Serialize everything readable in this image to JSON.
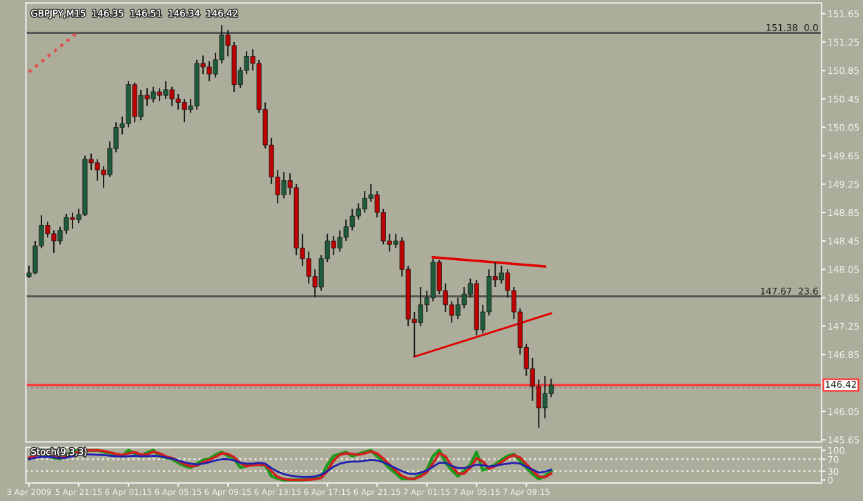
{
  "chart_data": [
    {
      "type": "candlestick",
      "tick_labels": "y",
      "grid": false,
      "annotations": [
        "GBPJPY,M15  146.35  146.51  146.34  146.42",
        {
          "text": "146.42",
          "y": 146.42
        }
      ],
      "categories": [
        null,
        null,
        null,
        null,
        null,
        null,
        null,
        null,
        null,
        null,
        null,
        null,
        null,
        null,
        null,
        null,
        null,
        null,
        null,
        null,
        null,
        null,
        null,
        null,
        null,
        null,
        null,
        null,
        null,
        null,
        null,
        null,
        null,
        null,
        null,
        null,
        null,
        null,
        null,
        null,
        null,
        null,
        null,
        null,
        null,
        null,
        null,
        null,
        null,
        null,
        null,
        null,
        null,
        null,
        null,
        null,
        null,
        null,
        null,
        null,
        null,
        null,
        null,
        null,
        null,
        null,
        null,
        null,
        null,
        null,
        null,
        null,
        null,
        null,
        null,
        null,
        null,
        null,
        null,
        null,
        null,
        null,
        null,
        null,
        null,
        null,
        null,
        null,
        null,
        null,
        null,
        null,
        null,
        null,
        null,
        null,
        null,
        null,
        null,
        null,
        null,
        null,
        null,
        null,
        null,
        null,
        null,
        null,
        null,
        null,
        null,
        null,
        null,
        null,
        null,
        null,
        null,
        null,
        null,
        null,
        null,
        null,
        null,
        null,
        null,
        null,
        null,
        null
      ],
      "ylim": [
        145.62,
        151.8
      ],
      "yticks": [
        151.65,
        151.25,
        150.85,
        150.45,
        150.05,
        149.65,
        149.25,
        148.85,
        148.45,
        148.05,
        147.65,
        147.25,
        146.85,
        {
          "value": 146.45,
          "label": null
        },
        146.05,
        145.65
      ],
      "ohlc": [
        [
          147.95,
          148.1,
          147.93,
          148.0
        ],
        [
          148.0,
          148.45,
          147.98,
          148.38
        ],
        [
          148.38,
          148.81,
          148.35,
          148.67
        ],
        [
          148.67,
          148.72,
          148.5,
          148.55
        ],
        [
          148.55,
          148.6,
          148.28,
          148.45
        ],
        [
          148.45,
          148.65,
          148.4,
          148.6
        ],
        [
          148.6,
          148.83,
          148.55,
          148.78
        ],
        [
          148.78,
          148.85,
          148.62,
          148.75
        ],
        [
          148.75,
          148.9,
          148.7,
          148.82
        ],
        [
          148.82,
          149.65,
          148.8,
          149.6
        ],
        [
          149.6,
          149.68,
          149.45,
          149.55
        ],
        [
          149.55,
          149.6,
          149.3,
          149.45
        ],
        [
          149.45,
          149.5,
          149.2,
          149.38
        ],
        [
          149.38,
          149.85,
          149.35,
          149.75
        ],
        [
          149.75,
          150.12,
          149.7,
          150.05
        ],
        [
          150.05,
          150.2,
          149.95,
          150.1
        ],
        [
          150.1,
          150.7,
          150.05,
          150.65
        ],
        [
          150.65,
          150.68,
          150.12,
          150.2
        ],
        [
          150.2,
          150.58,
          150.15,
          150.5
        ],
        [
          150.5,
          150.6,
          150.35,
          150.45
        ],
        [
          150.45,
          150.62,
          150.4,
          150.55
        ],
        [
          150.55,
          150.6,
          150.42,
          150.5
        ],
        [
          150.5,
          150.7,
          150.45,
          150.58
        ],
        [
          150.58,
          150.62,
          150.35,
          150.45
        ],
        [
          150.45,
          150.52,
          150.3,
          150.4
        ],
        [
          150.4,
          150.45,
          150.12,
          150.3
        ],
        [
          150.3,
          150.45,
          150.25,
          150.35
        ],
        [
          150.35,
          151.0,
          150.3,
          150.95
        ],
        [
          150.95,
          151.06,
          150.8,
          150.9
        ],
        [
          150.9,
          150.98,
          150.7,
          150.8
        ],
        [
          150.8,
          151.1,
          150.75,
          151.0
        ],
        [
          151.0,
          151.49,
          150.95,
          151.35
        ],
        [
          151.35,
          151.42,
          151.05,
          151.2
        ],
        [
          151.2,
          151.25,
          150.55,
          150.65
        ],
        [
          150.65,
          150.9,
          150.6,
          150.85
        ],
        [
          150.85,
          151.12,
          150.8,
          151.05
        ],
        [
          151.05,
          151.15,
          150.85,
          150.95
        ],
        [
          150.95,
          151.0,
          150.25,
          150.3
        ],
        [
          150.3,
          150.4,
          149.75,
          149.8
        ],
        [
          149.8,
          149.9,
          149.25,
          149.35
        ],
        [
          149.35,
          149.45,
          148.98,
          149.1
        ],
        [
          149.1,
          149.42,
          149.05,
          149.3
        ],
        [
          149.3,
          149.4,
          149.1,
          149.2
        ],
        [
          149.2,
          149.25,
          148.25,
          148.35
        ],
        [
          148.35,
          148.55,
          148.1,
          148.2
        ],
        [
          148.2,
          148.3,
          147.85,
          147.95
        ],
        [
          147.95,
          148.05,
          147.66,
          147.8
        ],
        [
          147.8,
          148.25,
          147.75,
          148.2
        ],
        [
          148.2,
          148.55,
          148.15,
          148.45
        ],
        [
          148.45,
          148.52,
          148.25,
          148.35
        ],
        [
          148.35,
          148.6,
          148.3,
          148.5
        ],
        [
          148.5,
          148.75,
          148.45,
          148.65
        ],
        [
          148.65,
          148.9,
          148.6,
          148.8
        ],
        [
          148.8,
          148.98,
          148.75,
          148.9
        ],
        [
          148.9,
          149.15,
          148.85,
          149.05
        ],
        [
          149.05,
          149.25,
          149.0,
          149.1
        ],
        [
          149.1,
          149.15,
          148.78,
          148.85
        ],
        [
          148.85,
          148.9,
          148.4,
          148.45
        ],
        [
          148.45,
          148.55,
          148.3,
          148.4
        ],
        [
          148.4,
          148.55,
          148.35,
          148.45
        ],
        [
          148.45,
          148.5,
          147.95,
          148.05
        ],
        [
          148.05,
          148.1,
          147.25,
          147.35
        ],
        [
          147.35,
          147.45,
          146.82,
          147.3
        ],
        [
          147.3,
          147.8,
          147.25,
          147.55
        ],
        [
          147.55,
          147.75,
          147.45,
          147.65
        ],
        [
          147.65,
          148.2,
          147.6,
          148.15
        ],
        [
          148.15,
          148.18,
          147.7,
          147.75
        ],
        [
          147.75,
          147.85,
          147.45,
          147.55
        ],
        [
          147.55,
          147.6,
          147.3,
          147.4
        ],
        [
          147.4,
          147.65,
          147.35,
          147.55
        ],
        [
          147.55,
          147.8,
          147.5,
          147.7
        ],
        [
          147.7,
          147.92,
          147.65,
          147.85
        ],
        [
          147.85,
          147.9,
          147.12,
          147.2
        ],
        [
          147.2,
          147.55,
          147.15,
          147.45
        ],
        [
          147.45,
          148.05,
          147.4,
          147.95
        ],
        [
          147.95,
          148.15,
          147.8,
          147.9
        ],
        [
          147.9,
          148.1,
          147.85,
          148.0
        ],
        [
          148.0,
          148.05,
          147.65,
          147.75
        ],
        [
          147.75,
          147.8,
          147.35,
          147.45
        ],
        [
          147.45,
          147.5,
          146.85,
          146.95
        ],
        [
          146.95,
          147.0,
          146.55,
          146.65
        ],
        [
          146.65,
          146.8,
          146.2,
          146.4
        ],
        [
          146.4,
          146.5,
          145.82,
          146.1
        ],
        [
          146.1,
          146.55,
          145.95,
          146.3
        ],
        [
          146.3,
          146.51,
          146.25,
          146.42
        ],
        null,
        null,
        null,
        null,
        null,
        null,
        null,
        null,
        null,
        null,
        null,
        null,
        null,
        null,
        null,
        null,
        null,
        null,
        null,
        null,
        null,
        null,
        null,
        null,
        null,
        null,
        null,
        null,
        null,
        null,
        null,
        null,
        null,
        null,
        null,
        null,
        null,
        null,
        null,
        null,
        null,
        null,
        null
      ],
      "colors": [
        "#1e5c3c",
        "#1e5c3c",
        "#1e5c3c",
        "#c00000",
        "#c00000",
        "#1e5c3c",
        "#1e5c3c",
        "#c00000",
        "#1e5c3c",
        "#1e5c3c",
        "#c00000",
        "#c00000",
        "#c00000",
        "#1e5c3c",
        "#1e5c3c",
        "#1e5c3c",
        "#1e5c3c",
        "#c00000",
        "#1e5c3c",
        "#c00000",
        "#1e5c3c",
        "#c00000",
        "#1e5c3c",
        "#c00000",
        "#c00000",
        "#c00000",
        "#1e5c3c",
        "#1e5c3c",
        "#c00000",
        "#c00000",
        "#1e5c3c",
        "#1e5c3c",
        "#c00000",
        "#c00000",
        "#1e5c3c",
        "#1e5c3c",
        "#c00000",
        "#c00000",
        "#c00000",
        "#c00000",
        "#c00000",
        "#1e5c3c",
        "#c00000",
        "#c00000",
        "#c00000",
        "#c00000",
        "#c00000",
        "#1e5c3c",
        "#1e5c3c",
        "#c00000",
        "#1e5c3c",
        "#1e5c3c",
        "#1e5c3c",
        "#1e5c3c",
        "#1e5c3c",
        "#1e5c3c",
        "#c00000",
        "#c00000",
        "#c00000",
        "#1e5c3c",
        "#c00000",
        "#c00000",
        "#c00000",
        "#1e5c3c",
        "#1e5c3c",
        "#1e5c3c",
        "#c00000",
        "#c00000",
        "#c00000",
        "#1e5c3c",
        "#1e5c3c",
        "#1e5c3c",
        "#c00000",
        "#1e5c3c",
        "#1e5c3c",
        "#c00000",
        "#1e5c3c",
        "#c00000",
        "#c00000",
        "#c00000",
        "#c00000",
        "#c00000",
        "#c00000",
        "#1e5c3c",
        "#1e5c3c",
        null,
        null,
        null,
        null,
        null,
        null,
        null,
        null,
        null,
        null,
        null,
        null,
        null,
        null,
        null,
        null,
        null,
        null,
        null,
        null,
        null,
        null,
        null,
        null,
        null,
        null,
        null,
        null,
        null,
        null,
        null,
        null,
        null,
        null,
        null,
        null,
        null,
        null,
        null,
        null,
        null,
        null,
        null
      ],
      "series": [
        {
          "type": "line",
          "color": "#e05050",
          "line_style": "dotted",
          "values": [
            150.83,
            null,
            null,
            null,
            null,
            null,
            null,
            null,
            151.4,
            null,
            null,
            null,
            null,
            null,
            null,
            null,
            null,
            null,
            null,
            null,
            null,
            null,
            null,
            null,
            null,
            null,
            null,
            null,
            null,
            null,
            null,
            null,
            null,
            null,
            null,
            null,
            null,
            null,
            null,
            null,
            null,
            null,
            null,
            null,
            null,
            null,
            null,
            null,
            null,
            null,
            null,
            null,
            null,
            null,
            null,
            null,
            null,
            null,
            null,
            null,
            null,
            null,
            null,
            null,
            null,
            null,
            null,
            null,
            null,
            null,
            null,
            null,
            null,
            null,
            null,
            null,
            null,
            null,
            null,
            null,
            null,
            null,
            null,
            null,
            null,
            null,
            null,
            null,
            null,
            null,
            null,
            null,
            null,
            null,
            null,
            null,
            null,
            null,
            null,
            null,
            null,
            null,
            null,
            null,
            null,
            null,
            null,
            null,
            null,
            null,
            null,
            null,
            null,
            null,
            null,
            null,
            null,
            null,
            null,
            null,
            null,
            null,
            null,
            null,
            null,
            null,
            null,
            null
          ]
        },
        {
          "type": "line",
          "color": "#e00000",
          "line_style": "solid",
          "values": [
            null,
            null,
            null,
            null,
            null,
            null,
            null,
            null,
            null,
            null,
            null,
            null,
            null,
            null,
            null,
            null,
            null,
            null,
            null,
            null,
            null,
            null,
            null,
            null,
            null,
            null,
            null,
            null,
            null,
            null,
            null,
            null,
            null,
            null,
            null,
            null,
            null,
            null,
            null,
            null,
            null,
            null,
            null,
            null,
            null,
            null,
            null,
            null,
            null,
            null,
            null,
            null,
            null,
            null,
            null,
            null,
            null,
            null,
            null,
            null,
            null,
            null,
            null,
            null,
            null,
            148.22,
            null,
            null,
            null,
            null,
            null,
            null,
            null,
            null,
            null,
            null,
            null,
            null,
            null,
            null,
            null,
            null,
            null,
            148.09,
            null,
            null,
            null,
            null,
            null,
            null,
            null,
            null,
            null,
            null,
            null,
            null,
            null,
            null,
            null,
            null,
            null,
            null,
            null,
            null,
            null,
            null,
            null,
            null,
            null,
            null,
            null,
            null,
            null,
            null,
            null,
            null,
            null,
            null,
            null,
            null,
            null,
            null,
            null,
            null,
            null,
            null,
            null,
            null
          ]
        },
        {
          "type": "line",
          "color": "#e00000",
          "line_style": "solid",
          "values": [
            null,
            null,
            null,
            null,
            null,
            null,
            null,
            null,
            null,
            null,
            null,
            null,
            null,
            null,
            null,
            null,
            null,
            null,
            null,
            null,
            null,
            null,
            null,
            null,
            null,
            null,
            null,
            null,
            null,
            null,
            null,
            null,
            null,
            null,
            null,
            null,
            null,
            null,
            null,
            null,
            null,
            null,
            null,
            null,
            null,
            null,
            null,
            null,
            null,
            null,
            null,
            null,
            null,
            null,
            null,
            null,
            null,
            null,
            null,
            null,
            null,
            null,
            146.82,
            null,
            null,
            null,
            null,
            null,
            null,
            null,
            null,
            null,
            null,
            null,
            null,
            null,
            null,
            null,
            null,
            null,
            null,
            null,
            null,
            null,
            147.43,
            null,
            null,
            null,
            null,
            null,
            null,
            null,
            null,
            null,
            null,
            null,
            null,
            null,
            null,
            null,
            null,
            null,
            null,
            null,
            null,
            null,
            null,
            null,
            null,
            null,
            null,
            null,
            null,
            null,
            null,
            null,
            null,
            null,
            null,
            null,
            null,
            null,
            null,
            null,
            null,
            null,
            null,
            null
          ]
        }
      ],
      "ref_lines": [
        {
          "axis": "y",
          "value": 151.38,
          "label": "151.38  0.0",
          "color": "#505050",
          "line_style": "solid"
        },
        {
          "axis": "y",
          "value": 147.67,
          "label": "147.67  23.6",
          "color": "#505050",
          "line_style": "solid"
        },
        {
          "axis": "y",
          "value": 146.42,
          "color": "#ff3030",
          "line_style": "solid"
        },
        {
          "axis": "y",
          "value": 146.38,
          "color": "#909090",
          "line_style": "dotted"
        }
      ]
    },
    {
      "type": "line",
      "grid": false,
      "annotations": [
        "Stoch(9,3,3)"
      ],
      "categories": [
        "3 Apr 2009",
        null,
        null,
        null,
        null,
        null,
        null,
        null,
        "5 Apr 21:15",
        null,
        null,
        null,
        null,
        null,
        null,
        null,
        "6 Apr 01:15",
        null,
        null,
        null,
        null,
        null,
        null,
        null,
        "6 Apr 05:15",
        null,
        null,
        null,
        null,
        null,
        null,
        null,
        "6 Apr 09:15",
        null,
        null,
        null,
        null,
        null,
        null,
        null,
        "6 Apr 13:15",
        null,
        null,
        null,
        null,
        null,
        null,
        null,
        "6 Apr 17:15",
        null,
        null,
        null,
        null,
        null,
        null,
        null,
        "6 Apr 21:15",
        null,
        null,
        null,
        null,
        null,
        null,
        null,
        "7 Apr 01:15",
        null,
        null,
        null,
        null,
        null,
        null,
        null,
        "7 Apr 05:15",
        null,
        null,
        null,
        null,
        null,
        null,
        null,
        "7 Apr 09:15",
        null,
        null,
        null,
        null,
        null,
        null,
        null,
        null,
        null,
        null,
        null,
        null,
        null,
        null,
        null,
        null,
        null,
        null,
        null,
        null,
        null,
        null,
        null,
        null,
        null,
        null,
        null,
        null,
        null,
        null,
        null,
        null,
        null,
        null,
        null,
        null,
        null,
        null,
        null,
        null,
        null,
        null,
        null,
        null,
        null,
        null,
        null
      ],
      "ylim": [
        -10,
        110
      ],
      "yticks": [
        100,
        70,
        30,
        0
      ],
      "ref_lines": [
        {
          "axis": "y",
          "value": 70,
          "color": "#e8e8e0",
          "line_style": "dotted"
        },
        {
          "axis": "y",
          "value": 30,
          "color": "#e8e8e0",
          "line_style": "dotted"
        }
      ],
      "series": [
        {
          "color": "#1a9a1a",
          "values": [
            71,
            88,
            100,
            81,
            75,
            71,
            85,
            95,
            100,
            100,
            100,
            100,
            95,
            90,
            85,
            81,
            100,
            90,
            81,
            92,
            100,
            81,
            76,
            71,
            58,
            48,
            42,
            55,
            67,
            71,
            85,
            94,
            82,
            71,
            42,
            48,
            52,
            52,
            50,
            13,
            5,
            0,
            0,
            0,
            0,
            2,
            4,
            10,
            50,
            81,
            88,
            94,
            81,
            88,
            94,
            100,
            80,
            62,
            40,
            23,
            4,
            4,
            4,
            20,
            33,
            81,
            100,
            60,
            33,
            13,
            30,
            52,
            94,
            33,
            42,
            52,
            68,
            81,
            87,
            65,
            42,
            20,
            4,
            13,
            30,
            null,
            null,
            null,
            null,
            null,
            null,
            null,
            null,
            null,
            null,
            null,
            null,
            null,
            null,
            null,
            null,
            null,
            null,
            null,
            null,
            null,
            null,
            null,
            null,
            null,
            null,
            null,
            null,
            null,
            null,
            null,
            null,
            null,
            null,
            null,
            null,
            null,
            null,
            null,
            null,
            null,
            null,
            null
          ]
        },
        {
          "color": "#d02020",
          "values": [
            75,
            80,
            92,
            90,
            80,
            74,
            78,
            88,
            96,
            100,
            100,
            100,
            98,
            93,
            88,
            84,
            90,
            94,
            86,
            86,
            95,
            90,
            80,
            74,
            65,
            54,
            46,
            48,
            60,
            68,
            78,
            90,
            88,
            77,
            57,
            46,
            50,
            52,
            51,
            30,
            10,
            3,
            0,
            0,
            0,
            1,
            3,
            7,
            30,
            65,
            85,
            90,
            88,
            85,
            90,
            96,
            90,
            72,
            52,
            32,
            14,
            5,
            4,
            12,
            26,
            57,
            90,
            80,
            47,
            23,
            22,
            41,
            73,
            63,
            38,
            47,
            60,
            75,
            84,
            76,
            54,
            31,
            12,
            9,
            22,
            null,
            null,
            null,
            null,
            null,
            null,
            null,
            null,
            null,
            null,
            null,
            null,
            null,
            null,
            null,
            null,
            null,
            null,
            null,
            null,
            null,
            null,
            null,
            null,
            null,
            null,
            null,
            null,
            null,
            null,
            null,
            null,
            null,
            null,
            null,
            null,
            null,
            null,
            null,
            null,
            null,
            null,
            null
          ]
        },
        {
          "color": "#2020b0",
          "values": [
            70,
            75,
            78,
            78,
            76,
            74,
            75,
            80,
            84,
            86,
            86,
            85,
            84,
            82,
            80,
            79,
            80,
            82,
            80,
            80,
            82,
            80,
            76,
            72,
            66,
            60,
            55,
            52,
            55,
            60,
            66,
            70,
            70,
            66,
            58,
            55,
            55,
            58,
            55,
            40,
            28,
            20,
            15,
            12,
            10,
            10,
            12,
            18,
            30,
            45,
            55,
            60,
            62,
            62,
            65,
            68,
            66,
            60,
            50,
            40,
            30,
            22,
            20,
            25,
            32,
            45,
            58,
            58,
            48,
            40,
            40,
            45,
            52,
            50,
            45,
            48,
            52,
            55,
            58,
            55,
            45,
            35,
            25,
            28,
            35,
            null,
            null,
            null,
            null,
            null,
            null,
            null,
            null,
            null,
            null,
            null,
            null,
            null,
            null,
            null,
            null,
            null,
            null,
            null,
            null,
            null,
            null,
            null,
            null,
            null,
            null,
            null,
            null,
            null,
            null,
            null,
            null,
            null,
            null,
            null,
            null,
            null,
            null,
            null,
            null,
            null,
            null,
            null
          ]
        }
      ]
    }
  ]
}
